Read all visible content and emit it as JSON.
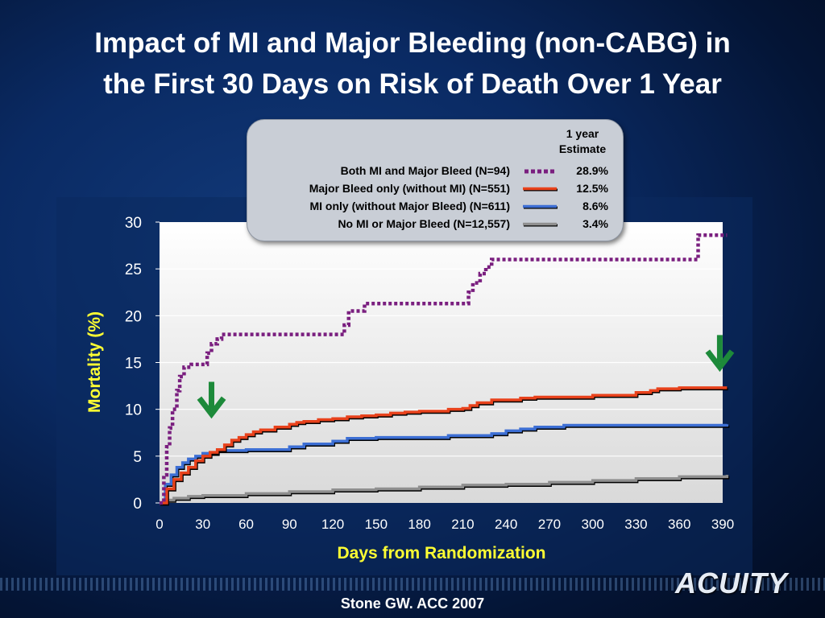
{
  "slide": {
    "title_line1": "Impact of MI and Major Bleeding (non-CABG) in",
    "title_line2": "the First 30 Days on Risk of Death Over 1 Year",
    "citation": "Stone GW. ACC 2007",
    "logo_text": "ACUITY",
    "colors": {
      "title": "#ffffff",
      "axis_label": "#ffff33",
      "arrow": "#1d8a3a"
    }
  },
  "legend": {
    "header_line1": "1 year",
    "header_line2": "Estimate",
    "rows": [
      {
        "label": "Both MI and Major Bleed (N=94)",
        "value": "28.9%",
        "color": "#7a1f7f",
        "style": "dotted"
      },
      {
        "label": "Major Bleed only (without MI) (N=551)",
        "value": "12.5%",
        "color": "#e8421c",
        "style": "solid"
      },
      {
        "label": "MI only (without Major Bleed) (N=611)",
        "value": "8.6%",
        "color": "#3d6fd4",
        "style": "solid"
      },
      {
        "label": "No MI or Major Bleed (N=12,557)",
        "value": "3.4%",
        "color": "#8f8f8f",
        "style": "solid"
      }
    ]
  },
  "chart_data": {
    "type": "line",
    "xlabel": "Days from Randomization",
    "ylabel": "Mortality (%)",
    "xlim": [
      0,
      390
    ],
    "ylim": [
      0,
      30
    ],
    "xticks": [
      0,
      30,
      60,
      90,
      120,
      150,
      180,
      210,
      240,
      270,
      300,
      330,
      360,
      390
    ],
    "yticks": [
      0,
      5,
      10,
      15,
      20,
      25,
      30
    ],
    "grid": "horizontal",
    "step": true,
    "annotations": [
      {
        "type": "arrow-down",
        "x": 36,
        "y": 9.5
      },
      {
        "type": "arrow-down",
        "x": 388,
        "y": 14.5
      }
    ],
    "series": [
      {
        "name": "Both MI and Major Bleed (N=94)",
        "color": "#7a1f7f",
        "style": "dotted",
        "x": [
          0,
          3,
          5,
          7,
          9,
          12,
          14,
          17,
          22,
          30,
          33,
          36,
          40,
          43,
          125,
          128,
          131,
          142,
          212,
          214,
          217,
          222,
          226,
          230,
          370,
          373,
          393
        ],
        "y": [
          0,
          3,
          6,
          8,
          10,
          12,
          13.5,
          14.5,
          14.8,
          14.8,
          16,
          17,
          17.5,
          18,
          18,
          19,
          20.5,
          21.3,
          21.3,
          22.5,
          23.5,
          24.5,
          25.2,
          26,
          26,
          28.6,
          28.6
        ]
      },
      {
        "name": "Major Bleed only (without MI) (N=551)",
        "color": "#e8421c",
        "style": "solid",
        "x": [
          0,
          5,
          10,
          15,
          20,
          25,
          30,
          35,
          40,
          45,
          50,
          55,
          60,
          65,
          70,
          80,
          90,
          95,
          100,
          110,
          120,
          130,
          140,
          150,
          160,
          170,
          180,
          200,
          210,
          215,
          220,
          230,
          250,
          260,
          300,
          330,
          340,
          345,
          360,
          393
        ],
        "y": [
          0,
          1.5,
          2.5,
          3.2,
          3.8,
          4.5,
          5.0,
          5.4,
          5.7,
          6.2,
          6.7,
          7.0,
          7.3,
          7.6,
          7.8,
          8.1,
          8.4,
          8.6,
          8.7,
          8.9,
          9.0,
          9.2,
          9.3,
          9.4,
          9.6,
          9.7,
          9.8,
          10.0,
          10.1,
          10.4,
          10.7,
          11.0,
          11.2,
          11.3,
          11.5,
          11.8,
          12.0,
          12.2,
          12.3,
          12.3
        ]
      },
      {
        "name": "MI only (without Major Bleed) (N=611)",
        "color": "#3d6fd4",
        "style": "solid",
        "x": [
          0,
          4,
          8,
          12,
          16,
          20,
          25,
          30,
          40,
          60,
          90,
          100,
          120,
          130,
          150,
          200,
          230,
          240,
          250,
          260,
          280,
          393
        ],
        "y": [
          0,
          2.0,
          3.0,
          3.8,
          4.3,
          4.7,
          5.0,
          5.3,
          5.6,
          5.7,
          6.0,
          6.3,
          6.6,
          6.9,
          7.0,
          7.2,
          7.4,
          7.7,
          7.9,
          8.1,
          8.3,
          8.4
        ]
      },
      {
        "name": "No MI or Major Bleed (N=12,557)",
        "color": "#8f8f8f",
        "style": "solid",
        "x": [
          0,
          5,
          10,
          20,
          30,
          60,
          90,
          120,
          150,
          180,
          210,
          240,
          270,
          300,
          330,
          360,
          393
        ],
        "y": [
          0,
          0.3,
          0.5,
          0.7,
          0.8,
          1.0,
          1.2,
          1.4,
          1.5,
          1.7,
          1.9,
          2.0,
          2.2,
          2.4,
          2.6,
          2.8,
          3.0
        ]
      }
    ]
  }
}
